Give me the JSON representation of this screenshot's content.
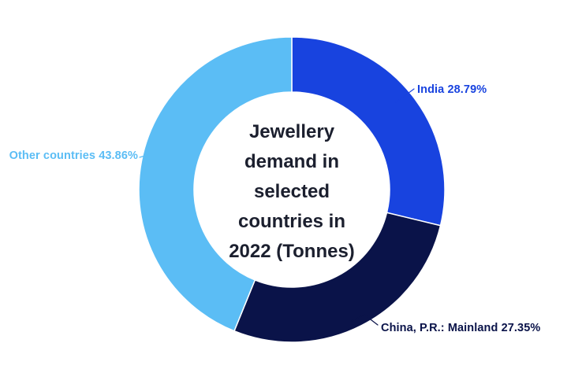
{
  "chart_data": {
    "type": "pie",
    "donut": true,
    "title": "Jewellery demand in selected countries in 2022 (Tonnes)",
    "title_lines": [
      "Jewellery",
      "demand in",
      "selected",
      "countries in",
      "2022 (Tonnes)"
    ],
    "unit": "%",
    "start_angle": "top",
    "direction": "clockwise",
    "inner_radius_ratio": 0.64,
    "legend": "none",
    "background": "#ffffff",
    "separator_color": "#ffffff",
    "title_color": "#1b1f2e",
    "slices": [
      {
        "name": "India",
        "value": 28.79,
        "label": "India 28.79%",
        "color": "#1843df"
      },
      {
        "name": "China, P.R.: Mainland",
        "value": 27.35,
        "label": "China, P.R.: Mainland 27.35%",
        "color": "#0a1349"
      },
      {
        "name": "Other countries",
        "value": 43.86,
        "label": "Other countries 43.86%",
        "color": "#5bbdf5"
      }
    ]
  }
}
